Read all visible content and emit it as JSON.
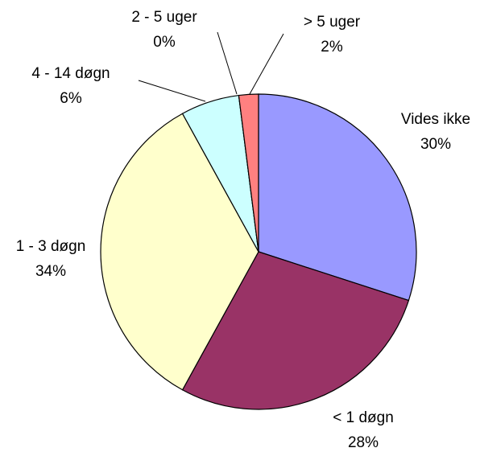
{
  "chart_data": {
    "type": "pie",
    "categories": [
      "Vides ikke",
      "< 1 døgn",
      "1 - 3 døgn",
      "4 - 14 døgn",
      "2 - 5 uger",
      "> 5 uger"
    ],
    "values": [
      30,
      28,
      34,
      6,
      0,
      2
    ],
    "value_labels": [
      "30%",
      "28%",
      "34%",
      "6%",
      "0%",
      "2%"
    ],
    "colors": [
      "#9999ff",
      "#993366",
      "#ffffcc",
      "#ccffff",
      "#ffffff",
      "#ff8080"
    ]
  }
}
